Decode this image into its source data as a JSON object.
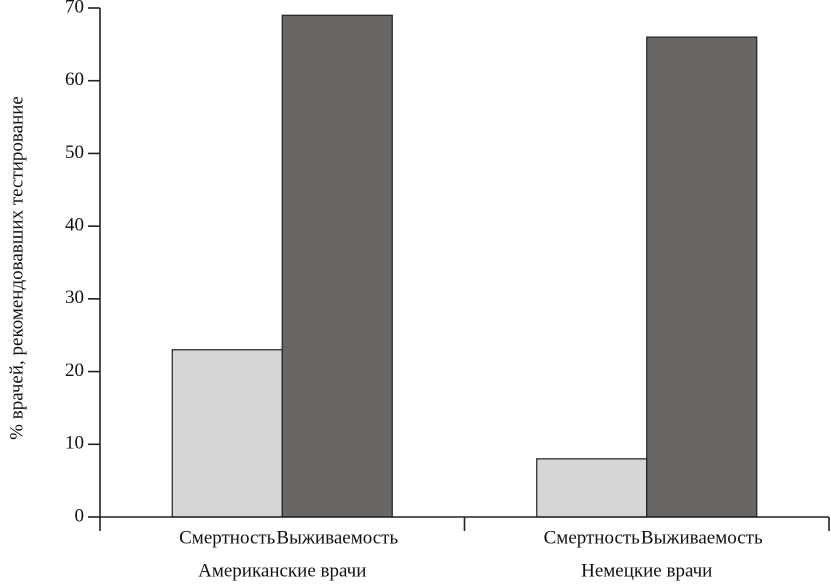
{
  "chart_data": {
    "type": "bar",
    "y_label": "% врачей, рекомендовавших тестирование",
    "categories": [
      "Американские врачи",
      "Немецкие врачи"
    ],
    "series": [
      {
        "name": "Смертность",
        "color": "#d6d6d6",
        "values": [
          23,
          8
        ]
      },
      {
        "name": "Выживаемость",
        "color": "#6a6664",
        "values": [
          69,
          66
        ]
      }
    ],
    "ylim": [
      0,
      70
    ],
    "yticks": [
      0,
      10,
      20,
      30,
      40,
      50,
      60,
      70
    ]
  }
}
